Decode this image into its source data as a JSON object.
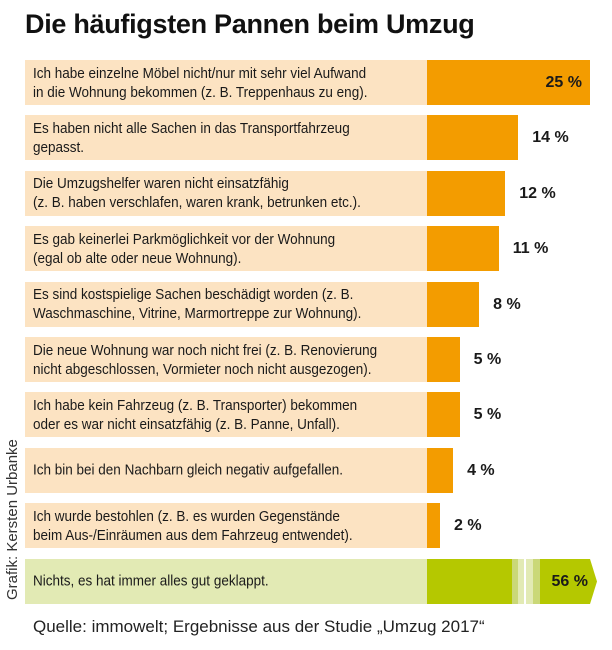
{
  "chart_data": {
    "type": "bar",
    "orientation": "horizontal",
    "title": "Die häufigsten Pannen beim Umzug",
    "xlabel": "",
    "ylabel": "",
    "unit": "%",
    "xlim": [
      0,
      25
    ],
    "grid": false,
    "legend": "none",
    "categories": [
      "Ich habe einzelne Möbel nicht/nur mit sehr viel Aufwand\nin die Wohnung bekommen (z. B. Treppenhaus zu eng).",
      "Es haben nicht alle Sachen in das Transportfahrzeug\ngepasst.",
      "Die Umzugshelfer waren nicht einsatzfähig\n(z. B. haben verschlafen, waren krank, betrunken etc.).",
      "Es gab keinerlei Parkmöglichkeit vor der Wohnung\n(egal ob alte oder neue Wohnung).",
      "Es sind kostspielige Sachen beschädigt worden (z. B.\nWaschmaschine, Vitrine, Marmortreppe zur Wohnung).",
      "Die neue Wohnung war noch nicht frei (z. B. Renovierung\nnicht abgeschlossen, Vormieter noch nicht ausgezogen).",
      "Ich habe kein Fahrzeug (z. B. Transporter) bekommen\noder es war nicht einsatzfähig (z. B. Panne, Unfall).",
      "Ich bin bei den Nachbarn gleich negativ aufgefallen.",
      "Ich wurde bestohlen (z. B. es wurden Gegenstände\nbeim Aus-/Einräumen aus dem Fahrzeug entwendet).",
      "Nichts, es hat immer alles gut geklappt."
    ],
    "values": [
      25,
      14,
      12,
      11,
      8,
      5,
      5,
      4,
      2,
      56
    ],
    "value_labels": [
      "25 %",
      "14 %",
      "12 %",
      "11 %",
      "8 %",
      "5 %",
      "5 %",
      "4 %",
      "2 %",
      "56 %"
    ],
    "broken_axis_bar_index": 9,
    "source": "Quelle: immowelt; Ergebnisse aus der Studie „Umzug 2017“",
    "credit": "Grafik: Kersten Urbanke"
  },
  "colors": {
    "bar": "#F39C00",
    "label_bg": "#FCE3C2",
    "highlight_bar": "#B5C800",
    "highlight_label_bg": "#E2EAB4",
    "highlight_fade_1": "#CAD878",
    "highlight_fade_2": "#E2EAB4"
  }
}
